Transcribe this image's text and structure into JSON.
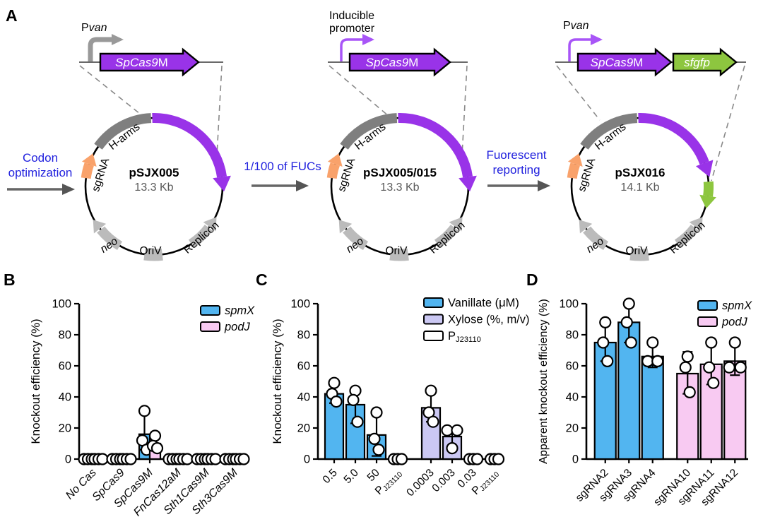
{
  "figure": {
    "panel_letters": {
      "a": "A",
      "b": "B",
      "c": "C",
      "d": "D"
    }
  },
  "panelA": {
    "colors": {
      "cas_purple": "#9933E8",
      "gfp_green": "#8DC63F",
      "sgrna_orange": "#F9A26B",
      "harms_gray": "#7F7F7F",
      "backbone_lightgray": "#BBBBBB",
      "promoter_gray": "#999999",
      "inducible_purple": "#A855F7",
      "arrow_gray": "#666666",
      "label_blue": "#2121DE"
    },
    "transitions": [
      {
        "lines": [
          "Codon",
          "optimization"
        ]
      },
      {
        "lines": [
          "1/100 of FUCs"
        ]
      },
      {
        "lines": [
          "Fuorescent",
          "reporting"
        ]
      }
    ],
    "plasmids": [
      {
        "name": "pSJX005",
        "size": "13.3 Kb",
        "promoter_lines": [
          [
            {
              "t": "P"
            },
            {
              "t": "van",
              "i": true
            }
          ]
        ],
        "genes": [
          [
            {
              "t": "SpCas9",
              "i": true
            },
            {
              "t": "M"
            }
          ]
        ],
        "ring": {
          "sgrna": "sgRNA",
          "harms": "H-arms",
          "neo": "neo",
          "oriv": "OriV",
          "replicon": "Replicon"
        }
      },
      {
        "name": "pSJX005/015",
        "size": "13.3 Kb",
        "promoter_lines": [
          [
            {
              "t": "Inducible"
            }
          ],
          [
            {
              "t": "promoter"
            }
          ]
        ],
        "genes": [
          [
            {
              "t": "SpCas9",
              "i": true
            },
            {
              "t": "M"
            }
          ]
        ],
        "ring": {
          "sgrna": "sgRNA",
          "harms": "H-arms",
          "neo": "neo",
          "oriv": "OriV",
          "replicon": "Replicon"
        }
      },
      {
        "name": "pSJX016",
        "size": "14.1 Kb",
        "promoter_lines": [
          [
            {
              "t": "P"
            },
            {
              "t": "van",
              "i": true
            }
          ]
        ],
        "genes": [
          [
            {
              "t": "SpCas9",
              "i": true
            },
            {
              "t": "M"
            }
          ],
          [
            {
              "t": "sfgfp",
              "i": true
            }
          ]
        ],
        "ring": {
          "sgrna": "sgRNA",
          "harms": "H-arms",
          "neo": "neo",
          "oriv": "OriV",
          "replicon": "Replicon"
        }
      }
    ]
  },
  "chart_data": [
    {
      "panel": "B",
      "type": "bar",
      "title": "",
      "ylabel": "Knockout efficiency (%)",
      "ylim": [
        0,
        100
      ],
      "yticks": [
        0,
        20,
        40,
        60,
        80,
        100
      ],
      "categories": [
        "No Cas",
        "SpCas9",
        "SpCas9M",
        "FnCas12aM",
        "Sth1Cas9M",
        "Sth3Cas9M"
      ],
      "categories_italic": true,
      "legend_pos": "top-right",
      "legend": [
        {
          "label": "spmX",
          "italic": true,
          "color": "#52B5F0"
        },
        {
          "label": "podJ",
          "italic": true,
          "color": "#F8CAF2"
        }
      ],
      "series": [
        {
          "name": "spmX",
          "color": "#52B5F0",
          "values": [
            0,
            0,
            16,
            0,
            0,
            0
          ],
          "err_lo": [
            null,
            null,
            6,
            null,
            null,
            null
          ],
          "err_hi": [
            null,
            null,
            31,
            null,
            null,
            null
          ],
          "points": [
            [
              0,
              0,
              0
            ],
            [
              0,
              0,
              0
            ],
            [
              31,
              12,
              6
            ],
            [
              0,
              0,
              0
            ],
            [
              0,
              0,
              0
            ],
            [
              0,
              0,
              0
            ]
          ]
        },
        {
          "name": "podJ",
          "color": "#F8CAF2",
          "values": [
            0,
            0,
            10,
            0,
            0,
            0
          ],
          "err_lo": [
            null,
            null,
            7,
            null,
            null,
            null
          ],
          "err_hi": [
            null,
            null,
            16,
            null,
            null,
            null
          ],
          "points": [
            [
              0,
              0,
              0
            ],
            [
              0,
              0,
              0
            ],
            [
              15,
              8.5,
              7
            ],
            [
              0,
              0,
              0
            ],
            [
              0,
              0,
              0
            ],
            [
              0,
              0,
              0
            ]
          ]
        }
      ]
    },
    {
      "panel": "C",
      "type": "bar",
      "title": "",
      "ylabel": "Knockout efficiency (%)",
      "ylim": [
        0,
        100
      ],
      "yticks": [
        0,
        20,
        40,
        60,
        80,
        100
      ],
      "legend_pos": "top-right",
      "legend": [
        {
          "label": "Vanillate (μM)",
          "color": "#52B5F0"
        },
        {
          "label": "Xylose (%, m/v)",
          "color": "#CBC8F3"
        },
        {
          "label_sub": {
            "pre": "P",
            "sub": "J23110"
          },
          "color": "#FFFFFF"
        }
      ],
      "bars": [
        {
          "label": "0.5",
          "value": 42,
          "err": [
            36,
            50
          ],
          "points": [
            49,
            42,
            37
          ],
          "color": "#52B5F0"
        },
        {
          "label": "5.0",
          "value": 35,
          "err": [
            23,
            45
          ],
          "points": [
            44,
            38,
            24
          ],
          "color": "#52B5F0"
        },
        {
          "label": "50",
          "value": 15.5,
          "err": [
            2,
            31
          ],
          "points": [
            30,
            13,
            6
          ],
          "color": "#52B5F0"
        },
        {
          "label_sub": {
            "pre": "P",
            "sub": "J23110"
          },
          "value": 0,
          "points": [
            0,
            0,
            0
          ],
          "color": "#FFFFFF"
        },
        {
          "label": "0.0003",
          "value": 33,
          "err": [
            24,
            45
          ],
          "points": [
            44,
            30,
            24
          ],
          "color": "#CBC8F3",
          "gap_before": true
        },
        {
          "label": "0.003",
          "value": 14.5,
          "err": [
            6,
            20
          ],
          "points": [
            18.5,
            18.5,
            7
          ],
          "point_dx": [
            -7,
            7,
            0
          ],
          "color": "#CBC8F3"
        },
        {
          "label": "0.03",
          "value": 0,
          "points": [
            0,
            0,
            0
          ],
          "color": "#CBC8F3"
        },
        {
          "label_sub": {
            "pre": "P",
            "sub": "J23110"
          },
          "value": 0,
          "points": [
            0,
            0,
            0
          ],
          "color": "#FFFFFF"
        }
      ]
    },
    {
      "panel": "D",
      "type": "bar",
      "title": "",
      "ylabel": "Apparent knockout efficiency (%)",
      "ylim": [
        0,
        100
      ],
      "yticks": [
        0,
        20,
        40,
        60,
        80,
        100
      ],
      "legend_pos": "top-right",
      "legend": [
        {
          "label": "spmX",
          "italic": true,
          "color": "#52B5F0"
        },
        {
          "label": "podJ",
          "italic": true,
          "color": "#F8CAF2"
        }
      ],
      "bars": [
        {
          "label": "sgRNA2",
          "value": 75,
          "err": [
            63,
            88
          ],
          "points": [
            88,
            75,
            63
          ],
          "color": "#52B5F0"
        },
        {
          "label": "sgRNA3",
          "value": 88,
          "err": [
            75,
            100
          ],
          "points": [
            100,
            88,
            75
          ],
          "color": "#52B5F0"
        },
        {
          "label": "sgRNA4",
          "value": 66,
          "err": [
            59,
            75
          ],
          "points": [
            75,
            63,
            63
          ],
          "point_dx": [
            0,
            -7,
            7
          ],
          "color": "#52B5F0"
        },
        {
          "label": "sgRNA10",
          "value": 55,
          "err": [
            42,
            69
          ],
          "points": [
            66,
            59,
            43
          ],
          "color": "#F8CAF2",
          "gap_before": true
        },
        {
          "label": "sgRNA11",
          "value": 61,
          "err": [
            48,
            74
          ],
          "points": [
            75,
            59,
            49
          ],
          "color": "#F8CAF2"
        },
        {
          "label": "sgRNA12",
          "value": 63,
          "err": [
            54,
            75
          ],
          "points": [
            75,
            59,
            59
          ],
          "point_dx": [
            0,
            -8,
            8
          ],
          "color": "#F8CAF2"
        }
      ]
    }
  ]
}
